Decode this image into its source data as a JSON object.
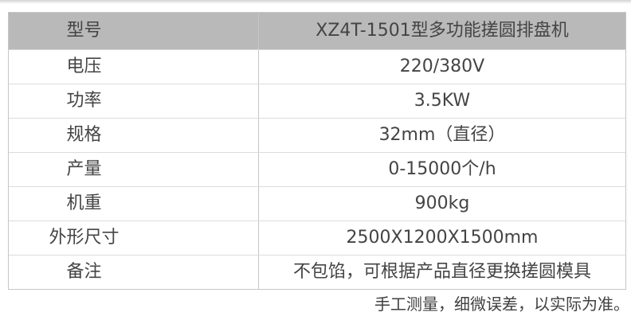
{
  "table": {
    "header": {
      "label": "型号",
      "value": "XZ4T-1501型多功能搓圆排盘机"
    },
    "rows": [
      {
        "label": "电压",
        "value": "220/380V"
      },
      {
        "label": "功率",
        "value": "3.5KW"
      },
      {
        "label": "规格",
        "value": "32mm（直径）"
      },
      {
        "label": "产量",
        "value": "0-15000个/h"
      },
      {
        "label": "机重",
        "value": "900kg"
      },
      {
        "label": "外形尺寸",
        "value": "2500X1200X1500mm"
      },
      {
        "label": "备注",
        "value": "不包馅，可根据产品直径更换搓圆模具"
      }
    ]
  },
  "footer": {
    "note": "手工测量，细微误差，以实际为准。"
  },
  "colors": {
    "header_bg": "#b9b9b9",
    "border_outer": "#c6c6c6",
    "border_row": "#dcdcdc",
    "text": "#444444",
    "background": "#ffffff"
  }
}
